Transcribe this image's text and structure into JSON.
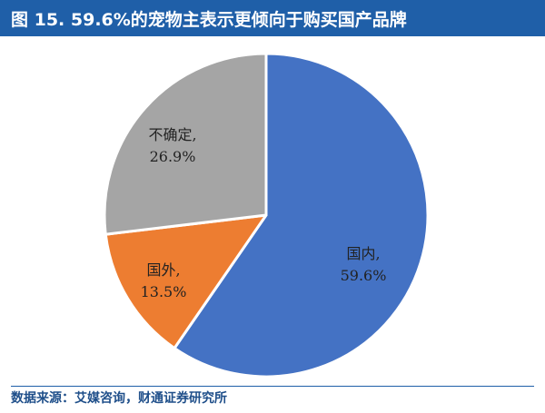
{
  "figure_title": "图 15. 59.6%的宠物主表示更倾向于购买国产品牌",
  "source_note": "数据来源：艾媒咨询，财通证券研究所",
  "chart_data": {
    "type": "pie",
    "start_angle_deg": 0,
    "direction": "clockwise",
    "slices": [
      {
        "label": "国内,",
        "value_text": "59.6%",
        "value": 59.6,
        "color": "#4472c4"
      },
      {
        "label": "国外,",
        "value_text": "13.5%",
        "value": 13.5,
        "color": "#ed7d31"
      },
      {
        "label": "不确定,",
        "value_text": "26.9%",
        "value": 26.9,
        "color": "#a5a5a5"
      }
    ]
  }
}
